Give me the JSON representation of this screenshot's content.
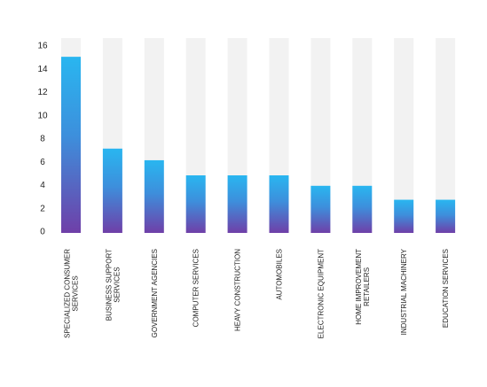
{
  "chart_data": {
    "type": "bar",
    "title": "",
    "xlabel": "",
    "ylabel": "",
    "ylim": [
      0,
      16
    ],
    "yticks": [
      0,
      2,
      4,
      6,
      8,
      10,
      12,
      14,
      16
    ],
    "grid": false,
    "legend": "none",
    "categories": [
      "SPECIALIZED CONSUMER SERVICES",
      "BUSINESS SUPPORT SERVICES",
      "GOVERNMENT AGENCIES",
      "COMPUTER SERVICES",
      "HEAVY CONSTRUCTION",
      "AUTOMOBILES",
      "ELECTRONIC EQUIPMENT",
      "HOME IMPROVEMENT RETAILERS",
      "INDUSTRIAL MACHINERY",
      "EDUCATION SERVICES"
    ],
    "category_lines": [
      [
        "SPECIALIZED CONSUMER",
        "SERVICES"
      ],
      [
        "BUSINESS SUPPORT",
        "SERVICES"
      ],
      [
        "GOVERNMENT AGENCIES"
      ],
      [
        "COMPUTER SERVICES"
      ],
      [
        "HEAVY CONSTRUCTION"
      ],
      [
        "AUTOMOBILES"
      ],
      [
        "ELECTRONIC EQUIPMENT"
      ],
      [
        "HOME IMPROVEMENT",
        "RETAILERS"
      ],
      [
        "INDUSTRIAL MACHINERY"
      ],
      [
        "EDUCATION SERVICES"
      ]
    ],
    "values": [
      15,
      7.1,
      6.1,
      4.8,
      4.8,
      4.8,
      3.9,
      3.9,
      2.7,
      2.7
    ],
    "colors": {
      "bar_top": "#29b6f0",
      "bar_bottom": "#6f3fa8",
      "track": "#f2f2f2",
      "text": "#222222"
    }
  }
}
